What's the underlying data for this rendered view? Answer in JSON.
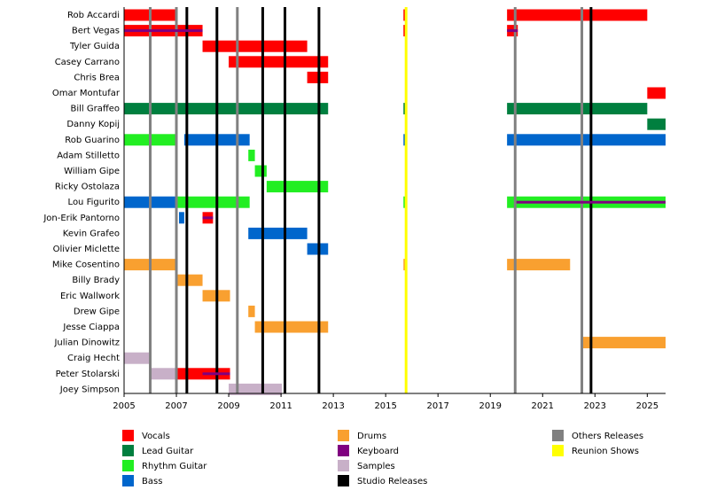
{
  "chart_data": {
    "type": "timeline",
    "xlim": [
      2005,
      2025.7
    ],
    "xticks": [
      2005,
      2007,
      2009,
      2011,
      2013,
      2015,
      2017,
      2019,
      2021,
      2023,
      2025
    ],
    "roles": [
      {
        "name": "Vocals",
        "color": "#ff0000"
      },
      {
        "name": "Lead Guitar",
        "color": "#007f3f"
      },
      {
        "name": "Rhythm Guitar",
        "color": "#22ee22"
      },
      {
        "name": "Bass",
        "color": "#0066cc"
      },
      {
        "name": "Drums",
        "color": "#f9a030"
      },
      {
        "name": "Keyboard",
        "color": "#800080"
      },
      {
        "name": "Samples",
        "color": "#c8b0c8"
      }
    ],
    "lines": [
      {
        "name": "Studio Releases",
        "color": "#000000",
        "dates": [
          2007.4,
          2008.55,
          2010.3,
          2011.15,
          2012.45,
          2022.85
        ]
      },
      {
        "name": "Others Releases",
        "color": "#808080",
        "dates": [
          2006.0,
          2007.0,
          2009.33,
          2019.95,
          2022.5
        ]
      },
      {
        "name": "Reunion Shows",
        "color": "#ffff00",
        "dates": [
          2015.78
        ]
      }
    ],
    "members": [
      {
        "name": "Rob Accardi",
        "bars": [
          {
            "role": "Vocals",
            "start": 2005,
            "end": 2007.03
          },
          {
            "role": "Vocals",
            "start": 2015.68,
            "end": 2015.8
          },
          {
            "role": "Vocals",
            "start": 2019.64,
            "end": 2025.0
          }
        ]
      },
      {
        "name": "Bert Vegas",
        "bars": [
          {
            "role": "Vocals",
            "start": 2005,
            "end": 2008.0
          },
          {
            "role": "Vocals",
            "start": 2015.68,
            "end": 2015.8
          },
          {
            "role": "Vocals",
            "start": 2019.64,
            "end": 2020.05
          },
          {
            "role": "Keyboard",
            "start": 2005,
            "end": 2008.0
          },
          {
            "role": "Keyboard",
            "start": 2019.64,
            "end": 2020.05
          }
        ]
      },
      {
        "name": "Tyler Guida",
        "bars": [
          {
            "role": "Vocals",
            "start": 2008.0,
            "end": 2012.0
          }
        ]
      },
      {
        "name": "Casey Carrano",
        "bars": [
          {
            "role": "Vocals",
            "start": 2009.0,
            "end": 2012.8
          }
        ]
      },
      {
        "name": "Chris Brea",
        "bars": [
          {
            "role": "Vocals",
            "start": 2012.0,
            "end": 2012.8
          }
        ]
      },
      {
        "name": "Omar Montufar",
        "bars": [
          {
            "role": "Vocals",
            "start": 2025.0,
            "end": 2025.7
          }
        ]
      },
      {
        "name": "Bill Graffeo",
        "bars": [
          {
            "role": "Lead Guitar",
            "start": 2005,
            "end": 2012.8
          },
          {
            "role": "Lead Guitar",
            "start": 2015.68,
            "end": 2015.8
          },
          {
            "role": "Lead Guitar",
            "start": 2019.64,
            "end": 2025.0
          }
        ]
      },
      {
        "name": "Danny Kopij",
        "bars": [
          {
            "role": "Lead Guitar",
            "start": 2025.0,
            "end": 2025.7
          }
        ]
      },
      {
        "name": "Rob Guarino",
        "bars": [
          {
            "role": "Rhythm Guitar",
            "start": 2005,
            "end": 2007.03
          },
          {
            "role": "Bass",
            "start": 2007.3,
            "end": 2009.8
          },
          {
            "role": "Bass",
            "start": 2015.68,
            "end": 2015.8
          },
          {
            "role": "Bass",
            "start": 2019.64,
            "end": 2025.7
          }
        ]
      },
      {
        "name": "Adam Stilletto",
        "bars": [
          {
            "role": "Rhythm Guitar",
            "start": 2009.75,
            "end": 2010.0
          }
        ]
      },
      {
        "name": "William Gipe",
        "bars": [
          {
            "role": "Rhythm Guitar",
            "start": 2010.0,
            "end": 2010.45
          }
        ]
      },
      {
        "name": "Ricky Ostolaza",
        "bars": [
          {
            "role": "Rhythm Guitar",
            "start": 2010.45,
            "end": 2012.8
          }
        ]
      },
      {
        "name": "Lou Figurito",
        "bars": [
          {
            "role": "Bass",
            "start": 2005,
            "end": 2007.03
          },
          {
            "role": "Rhythm Guitar",
            "start": 2007.03,
            "end": 2009.8
          },
          {
            "role": "Rhythm Guitar",
            "start": 2015.68,
            "end": 2015.8
          },
          {
            "role": "Rhythm Guitar",
            "start": 2019.64,
            "end": 2025.7
          },
          {
            "role": "Keyboard",
            "start": 2020.0,
            "end": 2025.7
          }
        ]
      },
      {
        "name": "Jon-Erik Pantorno",
        "bars": [
          {
            "role": "Bass",
            "start": 2007.1,
            "end": 2007.3
          },
          {
            "role": "Vocals",
            "start": 2008.0,
            "end": 2008.4
          },
          {
            "role": "Keyboard",
            "start": 2008.0,
            "end": 2008.4
          }
        ]
      },
      {
        "name": "Kevin Grafeo",
        "bars": [
          {
            "role": "Bass",
            "start": 2009.75,
            "end": 2012.0
          }
        ]
      },
      {
        "name": "Olivier Miclette",
        "bars": [
          {
            "role": "Bass",
            "start": 2012.0,
            "end": 2012.8
          }
        ]
      },
      {
        "name": "Mike Cosentino",
        "bars": [
          {
            "role": "Drums",
            "start": 2005,
            "end": 2007.03
          },
          {
            "role": "Drums",
            "start": 2015.68,
            "end": 2015.8
          },
          {
            "role": "Drums",
            "start": 2019.64,
            "end": 2022.05
          }
        ]
      },
      {
        "name": "Billy Brady",
        "bars": [
          {
            "role": "Drums",
            "start": 2007.03,
            "end": 2008.0
          }
        ]
      },
      {
        "name": "Eric Wallwork",
        "bars": [
          {
            "role": "Drums",
            "start": 2008.0,
            "end": 2009.05
          }
        ]
      },
      {
        "name": "Drew Gipe",
        "bars": [
          {
            "role": "Drums",
            "start": 2009.75,
            "end": 2010.0
          }
        ]
      },
      {
        "name": "Jesse Ciappa",
        "bars": [
          {
            "role": "Drums",
            "start": 2010.0,
            "end": 2012.8
          }
        ]
      },
      {
        "name": "Julian Dinowitz",
        "bars": [
          {
            "role": "Drums",
            "start": 2022.5,
            "end": 2025.7
          }
        ]
      },
      {
        "name": "Craig Hecht",
        "bars": [
          {
            "role": "Samples",
            "start": 2005,
            "end": 2006.0
          }
        ]
      },
      {
        "name": "Peter Stolarski",
        "bars": [
          {
            "role": "Samples",
            "start": 2006.0,
            "end": 2007.03
          },
          {
            "role": "Vocals",
            "start": 2007.03,
            "end": 2009.05
          },
          {
            "role": "Keyboard",
            "start": 2008.0,
            "end": 2009.05
          }
        ]
      },
      {
        "name": "Joey Simpson",
        "bars": [
          {
            "role": "Samples",
            "start": 2009.0,
            "end": 2011.03
          }
        ]
      }
    ]
  }
}
